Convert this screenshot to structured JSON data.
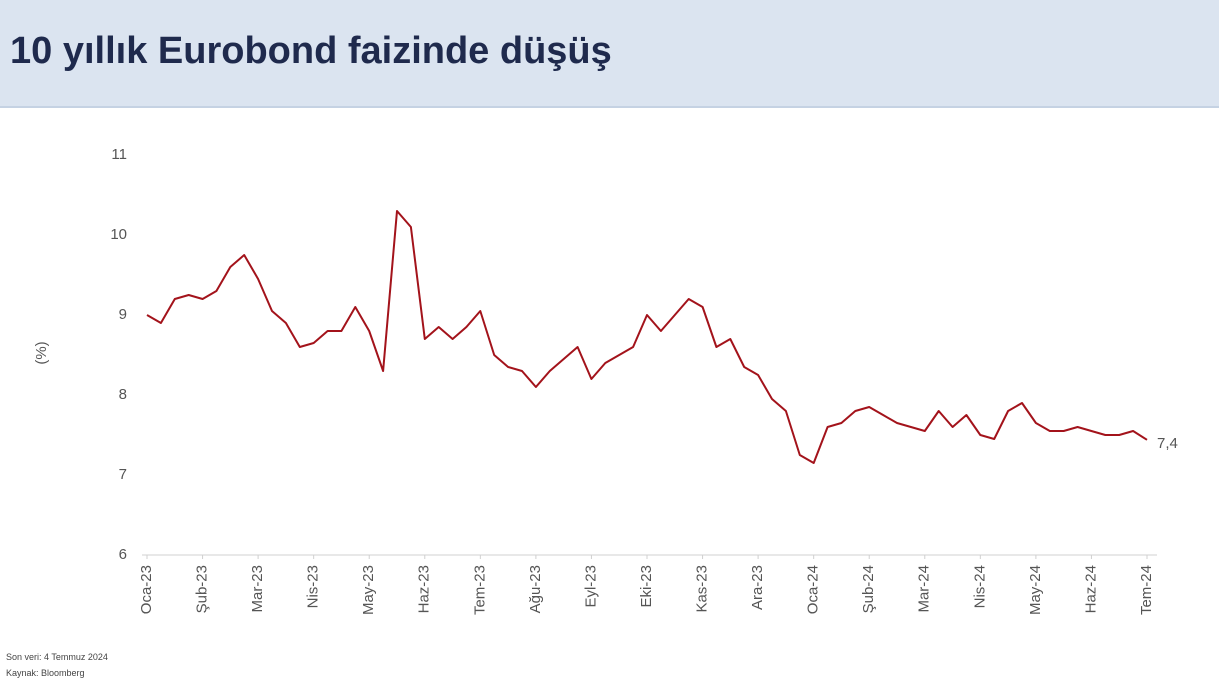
{
  "chart_data": {
    "type": "line",
    "title": "10 yıllık Eurobond faizinde düşüş",
    "ylabel": "(%)",
    "notes": [
      "Son veri: 4 Temmuz 2024",
      "Kaynak: Bloomberg"
    ],
    "end_label": "7,4",
    "categories": [
      "Oca-23",
      null,
      null,
      null,
      "Şub-23",
      null,
      null,
      null,
      "Mar-23",
      null,
      null,
      null,
      "Nis-23",
      null,
      null,
      null,
      "May-23",
      null,
      null,
      null,
      "Haz-23",
      null,
      null,
      null,
      "Tem-23",
      null,
      null,
      null,
      "Ağu-23",
      null,
      null,
      null,
      "Eyl-23",
      null,
      null,
      null,
      "Eki-23",
      null,
      null,
      null,
      "Kas-23",
      null,
      null,
      null,
      "Ara-23",
      null,
      null,
      null,
      "Oca-24",
      null,
      null,
      null,
      "Şub-24",
      null,
      null,
      null,
      "Mar-24",
      null,
      null,
      null,
      "Nis-24",
      null,
      null,
      null,
      "May-24",
      null,
      null,
      null,
      "Haz-24",
      null,
      null,
      null,
      "Tem-24"
    ],
    "values": [
      9.0,
      8.9,
      9.2,
      9.25,
      9.2,
      9.3,
      9.6,
      9.75,
      9.45,
      9.05,
      8.9,
      8.6,
      8.65,
      8.8,
      8.8,
      9.1,
      8.8,
      8.3,
      10.3,
      10.1,
      8.7,
      8.85,
      8.7,
      8.85,
      9.05,
      8.5,
      8.35,
      8.3,
      8.1,
      8.3,
      8.45,
      8.6,
      8.2,
      8.4,
      8.5,
      8.6,
      9.0,
      8.8,
      9.0,
      9.2,
      9.1,
      8.6,
      8.7,
      8.35,
      8.25,
      7.95,
      7.8,
      7.25,
      7.15,
      7.6,
      7.65,
      7.8,
      7.85,
      7.75,
      7.65,
      7.6,
      7.55,
      7.8,
      7.6,
      7.75,
      7.5,
      7.45,
      7.8,
      7.9,
      7.65,
      7.55,
      7.55,
      7.6,
      7.55,
      7.5,
      7.5,
      7.55,
      7.44
    ],
    "color": "#a3131b",
    "ylim": [
      6,
      11
    ],
    "yticks": [
      6,
      7,
      8,
      9,
      10,
      11
    ],
    "grid": false
  }
}
